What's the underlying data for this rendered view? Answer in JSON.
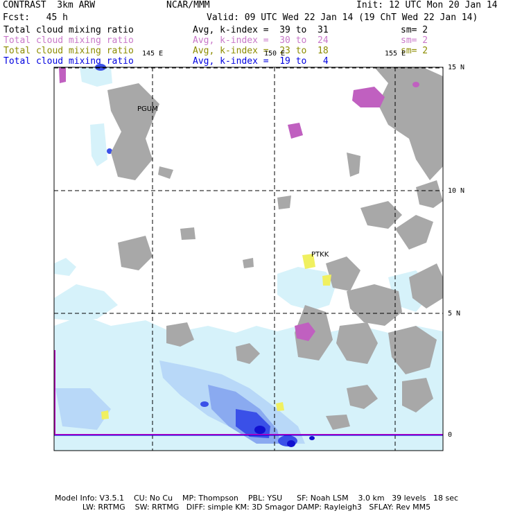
{
  "header": {
    "left1": "CONTRAST  3km ARW",
    "center1": "NCAR/MMM",
    "right1": "Init: 12 UTC Mon 20 Jan 14",
    "left2": "Fcst:   45 h",
    "right2": "Valid: 09 UTC Wed 22 Jan 14 (19 ChT Wed 22 Jan 14)"
  },
  "fields": [
    {
      "name": "Total cloud mixing ratio",
      "range": "Avg, k-index =  39 to  31",
      "sm": "sm= 2",
      "color": "#000000"
    },
    {
      "name": "Total cloud mixing ratio",
      "range": "Avg, k-index =  30 to  24",
      "sm": "sm= 2",
      "color": "#c878c8"
    },
    {
      "name": "Total cloud mixing ratio",
      "range": "Avg, k-index =  23 to  18",
      "sm": "sm= 2",
      "color": "#8c8c00"
    },
    {
      "name": "Total cloud mixing ratio",
      "range": "Avg, k-index =  19 to   4",
      "sm": "",
      "color": "#0000e0"
    }
  ],
  "map": {
    "lon_labels": [
      "145 E",
      "150 E",
      "155 E"
    ],
    "lat_labels": [
      "15 N",
      "10 N",
      "5 N",
      "0"
    ],
    "stations": [
      "PGUM",
      "PTKK"
    ]
  },
  "footer": {
    "line1": "Model Info: V3.5.1    CU: No Cu    MP: Thompson    PBL: YSU      SF: Noah LSM    3.0 km   39 levels   18 sec",
    "line2": "LW: RRTMG    SW: RRTMG   DIFF: simple KM: 3D Smagor DAMP: Rayleigh3   SFLAY: Rev MM5"
  },
  "colors": {
    "land_gray": "#a8a8a8",
    "cloud_light": "#d6f2fa",
    "cloud_mid": "#b8d8f8",
    "cloud_blue": "#8aaaf0",
    "cloud_dark": "#3a50e8",
    "cloud_core": "#1010d0",
    "magenta": "#c060c0",
    "yellow": "#f0f060"
  }
}
